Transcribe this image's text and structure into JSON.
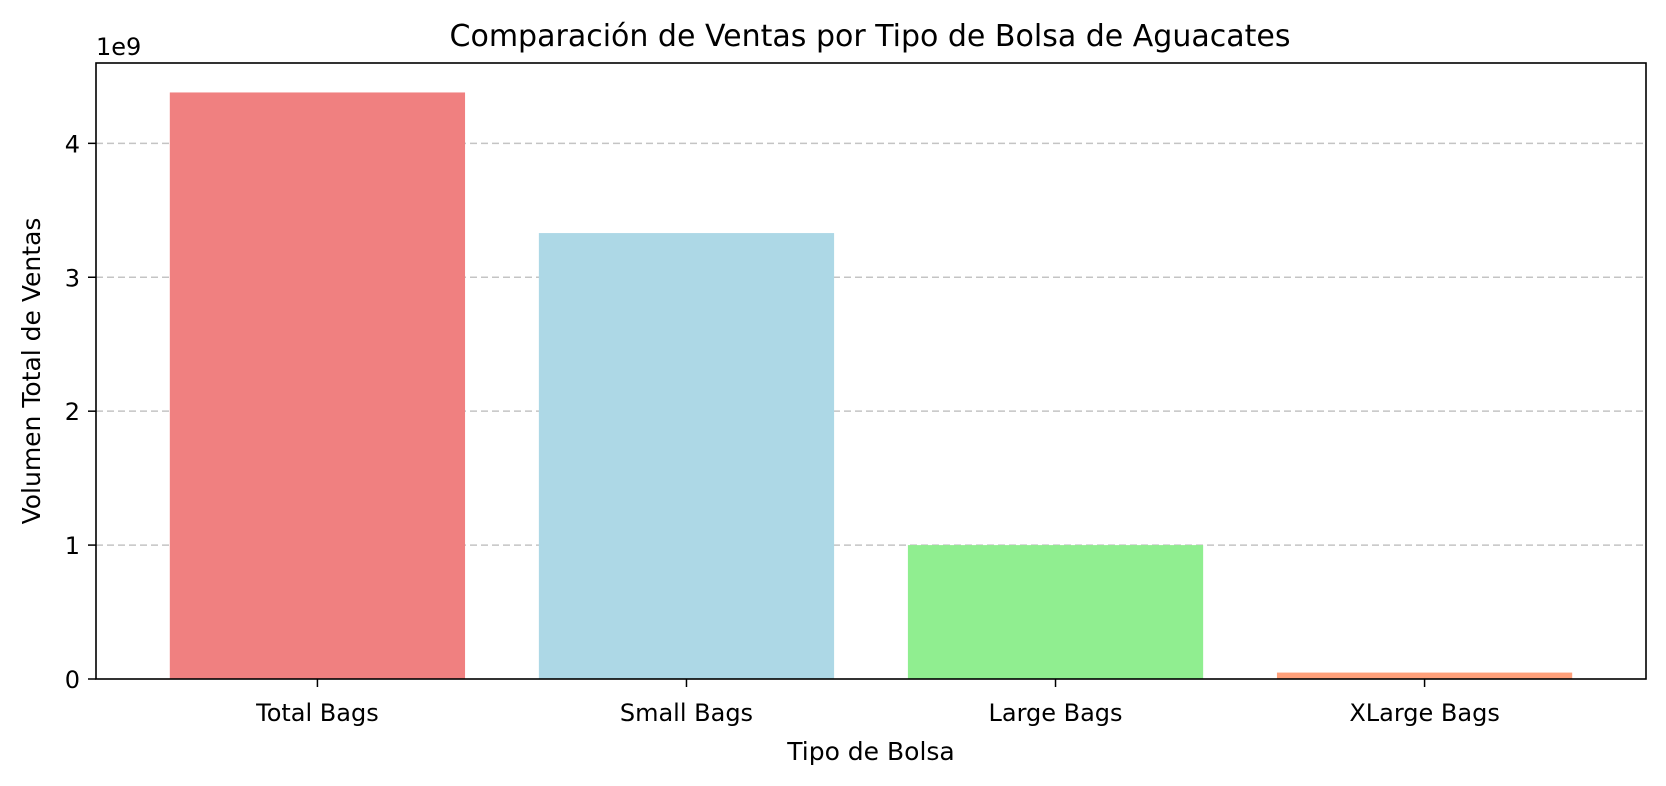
{
  "chart_data": {
    "type": "bar",
    "title": "Comparación de Ventas por Tipo de Bolsa de Aguacates",
    "xlabel": "Tipo de Bolsa",
    "ylabel": "Volumen Total de Ventas",
    "y_offset_label": "1e9",
    "categories": [
      "Total Bags",
      "Small Bags",
      "Large Bags",
      "XLarge Bags"
    ],
    "values": [
      4380000000,
      3330000000,
      1000000000,
      48000000
    ],
    "colors": [
      "#f08080",
      "#add8e6",
      "#90ee90",
      "#ffa07a"
    ],
    "ylim": [
      0,
      4600000000
    ],
    "yticks": [
      0,
      1000000000,
      2000000000,
      3000000000,
      4000000000
    ],
    "ytick_labels": [
      "0",
      "1",
      "2",
      "3",
      "4"
    ],
    "grid": "y dashed",
    "legend": "none"
  }
}
